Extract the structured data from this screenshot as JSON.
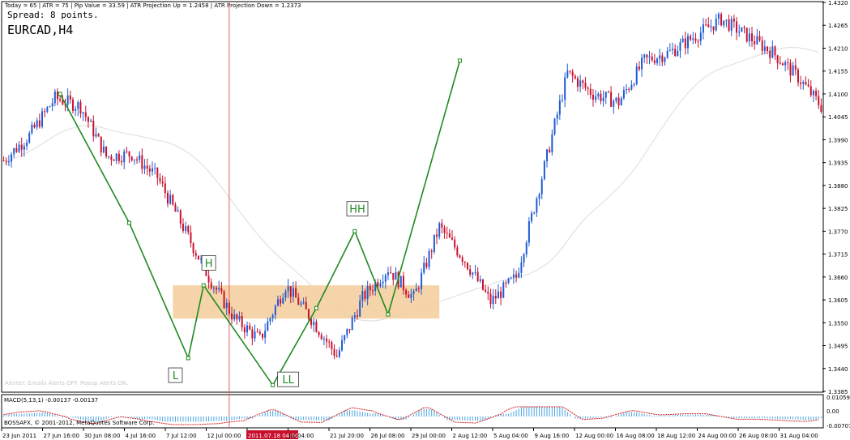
{
  "header": {
    "info_line": "Today = 65  |  ATR = 75  |  Pip Value = 33.59  |  ATR Projection Up = 1.2458  |  ATR Projection Down = 1.2373",
    "spread": "Spread: 8 points.",
    "symbol": "EURCAD,H4"
  },
  "alerts_text": "Alerter: Emails Alerts OFF.  Popup Alerts ON.",
  "copyright": "BOSSAFX, © 2001-2012, MetaQuotes Software Corp.",
  "macd": {
    "label": "MACD(5,13,1) -0.00137 -0.00137",
    "axis_labels": [
      "0.01059",
      "0.00",
      "-0.00707"
    ]
  },
  "colors": {
    "bull": "#1f5bd4",
    "bear": "#c8102e",
    "zigzag": "#1f8a1f",
    "zone": "#f5cfa0",
    "vline": "#e06060",
    "ma": "#e2e2e2"
  },
  "chart_data": {
    "type": "line",
    "title": "EURCAD,H4",
    "ylim": [
      1.3385,
      1.432
    ],
    "y_ticks": [
      "1.4320",
      "1.4265",
      "1.4210",
      "1.4155",
      "1.4100",
      "1.4045",
      "1.3990",
      "1.3935",
      "1.3880",
      "1.3825",
      "1.3770",
      "1.3715",
      "1.3660",
      "1.3605",
      "1.3550",
      "1.3495",
      "1.3440",
      "1.3385"
    ],
    "x_ticks": [
      "23 Jun 2011",
      "27 Jun 16:00",
      "30 Jun 08:00",
      "4 Jul 16:00",
      "7 Jul 12:00",
      "12 Jul 00:00",
      "2011.07.18 04:00",
      "Jul 04:00",
      "21 Jul 20:00",
      "26 Jul 08:00",
      "29 Jul 00:00",
      "2 Aug 12:00",
      "5 Aug 04:00",
      "9 Aug 16:00",
      "12 Aug 00:00",
      "16 Aug 08:00",
      "18 Aug 12:00",
      "24 Aug 00:00",
      "26 Aug 08:00",
      "31 Aug 04:00"
    ],
    "highlight_tick": "2011.07.18 04:00",
    "series": [
      {
        "x": [
          0,
          10,
          20,
          30,
          40,
          50,
          60,
          70,
          80,
          90,
          100,
          110,
          120,
          130,
          140,
          150,
          160,
          170,
          180,
          190
        ],
        "y": [
          1.394,
          1.4,
          1.409,
          1.407,
          1.395,
          1.3955,
          1.39,
          1.378,
          1.366,
          1.356,
          1.351,
          1.364,
          1.356,
          1.347,
          1.361,
          1.368,
          1.361,
          1.378,
          1.37,
          1.36
        ]
      },
      {
        "x": [
          190,
          200,
          210,
          220,
          230,
          240,
          250,
          260,
          270,
          280,
          290,
          300,
          310,
          319
        ],
        "y": [
          1.36,
          1.366,
          1.39,
          1.415,
          1.41,
          1.408,
          1.418,
          1.42,
          1.424,
          1.428,
          1.424,
          1.42,
          1.414,
          1.407
        ]
      }
    ],
    "zigzag_points": [
      {
        "x": 22,
        "y": 1.41
      },
      {
        "x": 49,
        "y": 1.379
      },
      {
        "x": 72,
        "y": 1.3465
      },
      {
        "x": 78,
        "y": 1.364
      },
      {
        "x": 105,
        "y": 1.34
      },
      {
        "x": 122,
        "y": 1.3585
      },
      {
        "x": 137,
        "y": 1.377
      },
      {
        "x": 150,
        "y": 1.357
      },
      {
        "x": 178,
        "y": 1.418
      }
    ],
    "pivot_labels": [
      {
        "text": "H",
        "x": 80,
        "y": 1.369
      },
      {
        "text": "L",
        "x": 67,
        "y": 1.342
      },
      {
        "text": "LL",
        "x": 111,
        "y": 1.341
      },
      {
        "text": "HH",
        "x": 138,
        "y": 1.382
      }
    ],
    "zone": {
      "x": [
        66,
        170
      ],
      "y": [
        1.356,
        1.364
      ]
    },
    "vertical_line_x": 88,
    "x_count": 320
  }
}
